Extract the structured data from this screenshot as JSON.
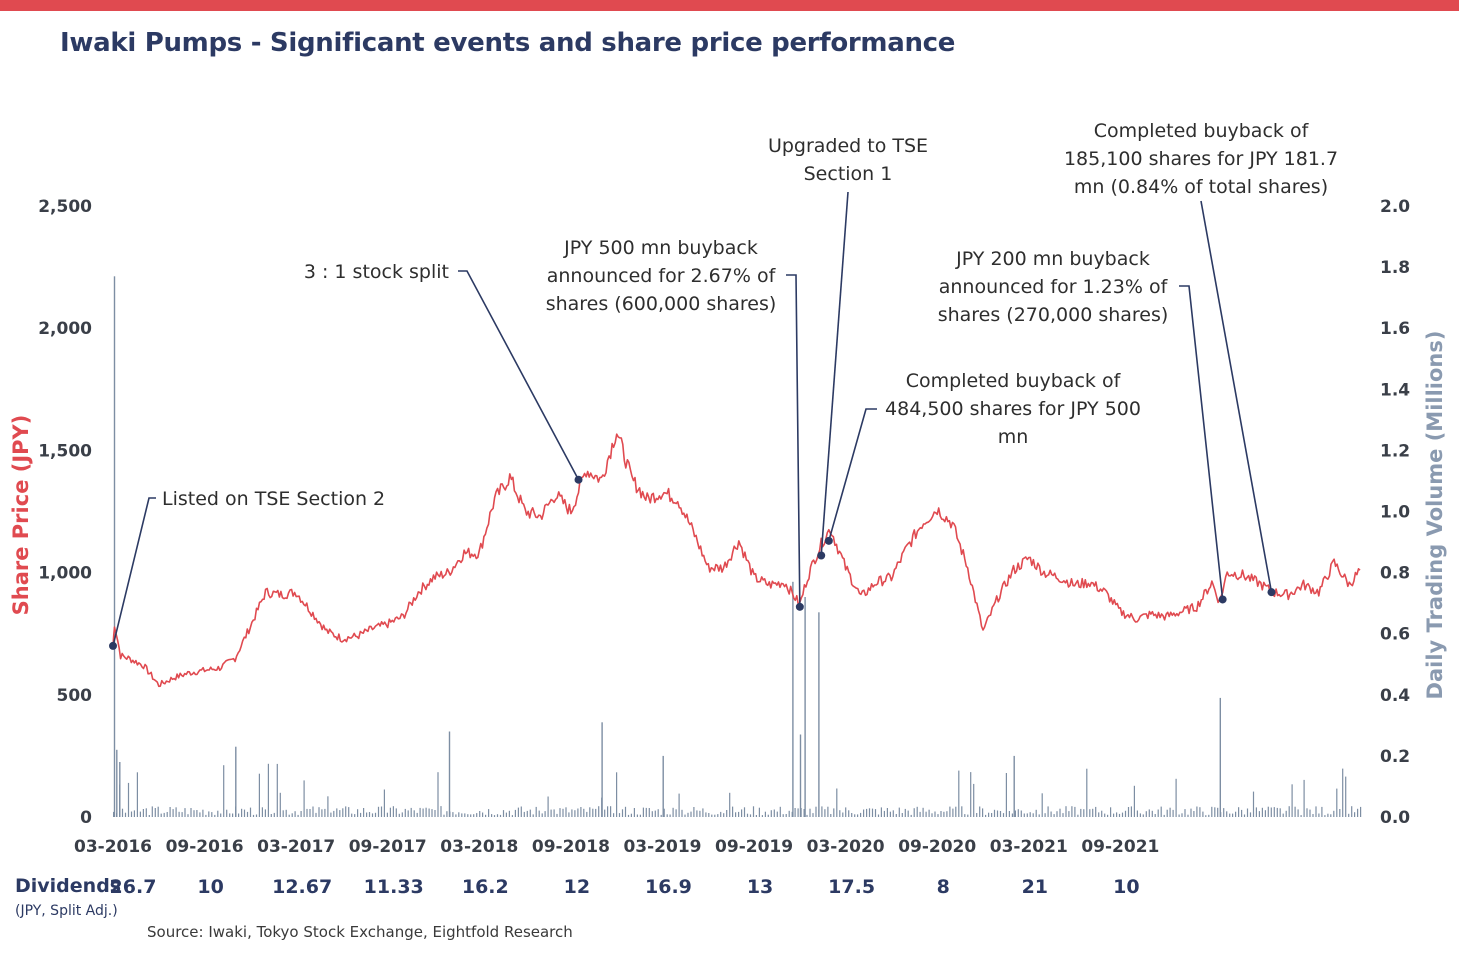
{
  "title": "Iwaki Pumps - Significant events and share price performance",
  "source": "Source: Iwaki, Tokyo Stock Exchange, Eightfold Research",
  "colors": {
    "price": "#e04a50",
    "volume": "#7d8ea3",
    "title": "#2c3a63",
    "topbar": "#e04a50"
  },
  "chart_data": {
    "type": "line",
    "title": "Iwaki Pumps - Significant events and share price performance",
    "x_ticks": [
      "03-2016",
      "09-2016",
      "03-2017",
      "09-2017",
      "03-2018",
      "09-2018",
      "03-2019",
      "09-2019",
      "03-2020",
      "09-2020",
      "03-2021",
      "09-2021"
    ],
    "y_left": {
      "label": "Share Price (JPY)",
      "range": [
        0,
        2500
      ],
      "ticks": [
        "0",
        "500",
        "1,000",
        "1,500",
        "2,000",
        "2,500"
      ]
    },
    "y_right": {
      "label": "Daily Trading Volume (Millions)",
      "range": [
        0,
        2.0
      ],
      "ticks": [
        "0.0",
        "0.2",
        "0.4",
        "0.6",
        "0.8",
        "1.0",
        "1.2",
        "1.4",
        "1.6",
        "1.8",
        "2.0"
      ]
    },
    "series": [
      {
        "name": "Share Price",
        "axis": "left",
        "values_monthly": [
          {
            "t": 0.0,
            "v": 700
          },
          {
            "t": 0.1,
            "v": 790
          },
          {
            "t": 0.5,
            "v": 660
          },
          {
            "t": 1,
            "v": 650
          },
          {
            "t": 2,
            "v": 620
          },
          {
            "t": 3,
            "v": 540
          },
          {
            "t": 4,
            "v": 570
          },
          {
            "t": 5,
            "v": 590
          },
          {
            "t": 6,
            "v": 600
          },
          {
            "t": 7,
            "v": 610
          },
          {
            "t": 8,
            "v": 650
          },
          {
            "t": 9,
            "v": 780
          },
          {
            "t": 10,
            "v": 920
          },
          {
            "t": 11,
            "v": 910
          },
          {
            "t": 12,
            "v": 920
          },
          {
            "t": 13,
            "v": 840
          },
          {
            "t": 14,
            "v": 760
          },
          {
            "t": 15,
            "v": 730
          },
          {
            "t": 16,
            "v": 740
          },
          {
            "t": 17,
            "v": 770
          },
          {
            "t": 18,
            "v": 790
          },
          {
            "t": 19,
            "v": 820
          },
          {
            "t": 20,
            "v": 920
          },
          {
            "t": 21,
            "v": 980
          },
          {
            "t": 22,
            "v": 1000
          },
          {
            "t": 23,
            "v": 1080
          },
          {
            "t": 24,
            "v": 1080
          },
          {
            "t": 25,
            "v": 1300
          },
          {
            "t": 26,
            "v": 1390
          },
          {
            "t": 27,
            "v": 1250
          },
          {
            "t": 28,
            "v": 1230
          },
          {
            "t": 29,
            "v": 1320
          },
          {
            "t": 30,
            "v": 1250
          },
          {
            "t": 31,
            "v": 1420
          },
          {
            "t": 32,
            "v": 1380
          },
          {
            "t": 33,
            "v": 1580
          },
          {
            "t": 34,
            "v": 1380
          },
          {
            "t": 35,
            "v": 1300
          },
          {
            "t": 36,
            "v": 1330
          },
          {
            "t": 37,
            "v": 1300
          },
          {
            "t": 38,
            "v": 1170
          },
          {
            "t": 39,
            "v": 1020
          },
          {
            "t": 40,
            "v": 1020
          },
          {
            "t": 41,
            "v": 1130
          },
          {
            "t": 42,
            "v": 980
          },
          {
            "t": 43,
            "v": 950
          },
          {
            "t": 44,
            "v": 960
          },
          {
            "t": 45,
            "v": 870
          },
          {
            "t": 45.5,
            "v": 980
          },
          {
            "t": 46,
            "v": 1060
          },
          {
            "t": 46.5,
            "v": 1130
          },
          {
            "t": 47,
            "v": 1180
          },
          {
            "t": 48,
            "v": 1020
          },
          {
            "t": 49,
            "v": 900
          },
          {
            "t": 50,
            "v": 960
          },
          {
            "t": 51,
            "v": 980
          },
          {
            "t": 52,
            "v": 1100
          },
          {
            "t": 53,
            "v": 1200
          },
          {
            "t": 54,
            "v": 1260
          },
          {
            "t": 55,
            "v": 1200
          },
          {
            "t": 56,
            "v": 1020
          },
          {
            "t": 57,
            "v": 760
          },
          {
            "t": 58,
            "v": 900
          },
          {
            "t": 59,
            "v": 1010
          },
          {
            "t": 60,
            "v": 1060
          },
          {
            "t": 61,
            "v": 1000
          },
          {
            "t": 62,
            "v": 980
          },
          {
            "t": 63,
            "v": 950
          },
          {
            "t": 64,
            "v": 960
          },
          {
            "t": 65,
            "v": 920
          },
          {
            "t": 66,
            "v": 840
          },
          {
            "t": 67,
            "v": 810
          },
          {
            "t": 68,
            "v": 830
          },
          {
            "t": 69,
            "v": 820
          },
          {
            "t": 70,
            "v": 840
          },
          {
            "t": 71,
            "v": 860
          },
          {
            "t": 72,
            "v": 960
          },
          {
            "t": 72.5,
            "v": 880
          },
          {
            "t": 73,
            "v": 1000
          },
          {
            "t": 74,
            "v": 990
          },
          {
            "t": 75,
            "v": 960
          },
          {
            "t": 76,
            "v": 920
          },
          {
            "t": 77,
            "v": 910
          },
          {
            "t": 78,
            "v": 950
          },
          {
            "t": 79,
            "v": 920
          },
          {
            "t": 80,
            "v": 1040
          },
          {
            "t": 81,
            "v": 950
          },
          {
            "t": 81.7,
            "v": 1010
          }
        ]
      },
      {
        "name": "Daily Trading Volume",
        "axis": "right",
        "type": "bar",
        "baseline": 0.02,
        "spikes": [
          {
            "t": 0.05,
            "v": 1.77
          },
          {
            "t": 0.2,
            "v": 0.22
          },
          {
            "t": 0.4,
            "v": 0.18
          },
          {
            "t": 8,
            "v": 0.23
          },
          {
            "t": 22,
            "v": 0.28
          },
          {
            "t": 32,
            "v": 0.31
          },
          {
            "t": 36,
            "v": 0.2
          },
          {
            "t": 44.5,
            "v": 0.77
          },
          {
            "t": 45,
            "v": 0.27
          },
          {
            "t": 45.3,
            "v": 0.72
          },
          {
            "t": 46.2,
            "v": 0.67
          },
          {
            "t": 59,
            "v": 0.2
          },
          {
            "t": 72.5,
            "v": 0.39
          }
        ]
      }
    ],
    "events": [
      {
        "label": "Listed on TSE Section 2",
        "t": 0.0,
        "price": 700
      },
      {
        "label": "3 : 1 stock split",
        "t": 30.5,
        "price": 1380
      },
      {
        "label": "JPY 500 mn buyback announced for 2.67% of shares (600,000 shares)",
        "t": 45.0,
        "price": 860
      },
      {
        "label": "Upgraded to TSE Section 1",
        "t": 46.4,
        "price": 1070
      },
      {
        "label": "Completed buyback of 484,500 shares for JPY 500 mn",
        "t": 46.9,
        "price": 1130
      },
      {
        "label": "JPY 200 mn buyback announced for 1.23% of shares (270,000 shares)",
        "t": 72.7,
        "price": 890
      },
      {
        "label": "Completed buyback of 185,100 shares for JPY 181.7 mn (0.84% of total shares)",
        "t": 75.9,
        "price": 920
      }
    ]
  },
  "annotations": {
    "listed": [
      "Listed on TSE Section 2"
    ],
    "split": [
      "3 : 1 stock split"
    ],
    "buyback500": [
      "JPY 500 mn buyback",
      "announced for 2.67% of",
      "shares (600,000 shares)"
    ],
    "upgraded": [
      "Upgraded to TSE",
      "Section 1"
    ],
    "completed484": [
      "Completed buyback of",
      "484,500 shares for JPY 500",
      "mn"
    ],
    "buyback200": [
      "JPY 200 mn buyback",
      "announced for 1.23% of",
      "shares (270,000 shares)"
    ],
    "completed185": [
      "Completed buyback of",
      "185,100 shares for JPY 181.7",
      "mn (0.84% of total shares)"
    ]
  },
  "dividends": {
    "label": "Dividends",
    "sublabel": "(JPY, Split Adj.)",
    "values": [
      "26.7",
      "10",
      "12.67",
      "11.33",
      "16.2",
      "12",
      "16.9",
      "13",
      "17.5",
      "8",
      "21",
      "10"
    ]
  }
}
